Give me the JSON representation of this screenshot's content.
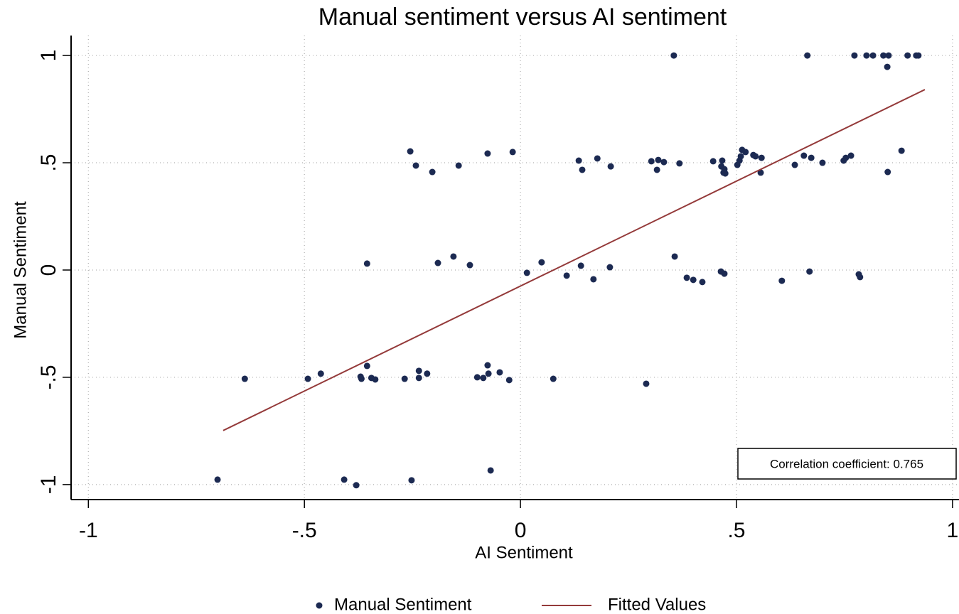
{
  "chart_data": {
    "type": "scatter",
    "title": "Manual sentiment versus AI sentiment",
    "x_label": "AI Sentiment",
    "y_label": "Manual Sentiment",
    "annotation": "Correlation coefficient: 0.765",
    "xlim": [
      -1.04,
      1.015
    ],
    "ylim": [
      -1.07,
      1.093
    ],
    "xticks": [
      -1,
      {
        "value": -0.5,
        "label": "-.5"
      },
      0,
      {
        "value": 0.5,
        "label": ".5"
      },
      1
    ],
    "yticks": [
      -1,
      {
        "value": -0.5,
        "label": "-.5"
      },
      0,
      {
        "value": 0.5,
        "label": ".5"
      },
      1
    ],
    "grid": true,
    "legend": "bottom",
    "series": [
      {
        "name": "Manual Sentiment",
        "type": "scatter",
        "color": "#1c2a52",
        "x": [
          0.355,
          0.664,
          0.773,
          0.801,
          0.816,
          0.84,
          0.852,
          0.896,
          0.916,
          0.921,
          0.849,
          -0.255,
          -0.242,
          -0.204,
          -0.143,
          -0.076,
          -0.018,
          0.135,
          0.143,
          0.178,
          0.209,
          0.303,
          0.316,
          0.319,
          0.332,
          0.368,
          0.446,
          0.465,
          0.467,
          0.47,
          0.472,
          0.474,
          0.502,
          0.507,
          0.51,
          0.513,
          0.521,
          0.539,
          0.544,
          0.558,
          0.556,
          0.635,
          0.656,
          0.673,
          0.699,
          0.748,
          0.753,
          0.765,
          0.882,
          0.85,
          -0.355,
          -0.191,
          -0.155,
          -0.117,
          0.015,
          0.049,
          0.14,
          0.107,
          0.169,
          0.207,
          0.357,
          0.385,
          0.4,
          0.421,
          0.464,
          0.472,
          0.605,
          0.669,
          0.783,
          0.786,
          -0.638,
          -0.492,
          -0.462,
          -0.37,
          -0.368,
          -0.355,
          -0.345,
          -0.336,
          -0.268,
          -0.235,
          -0.235,
          -0.216,
          -0.1,
          -0.086,
          -0.076,
          -0.074,
          -0.048,
          -0.026,
          0.076,
          0.291,
          -0.701,
          -0.408,
          -0.38,
          -0.252,
          -0.069
        ],
        "values": [
          1,
          1,
          1,
          1,
          1,
          1,
          1,
          1,
          1,
          1,
          0.947,
          0.553,
          0.487,
          0.457,
          0.487,
          0.543,
          0.55,
          0.51,
          0.467,
          0.52,
          0.483,
          0.507,
          0.467,
          0.513,
          0.503,
          0.497,
          0.507,
          0.483,
          0.51,
          0.454,
          0.47,
          0.45,
          0.49,
          0.51,
          0.53,
          0.56,
          0.55,
          0.536,
          0.53,
          0.523,
          0.454,
          0.49,
          0.533,
          0.523,
          0.5,
          0.51,
          0.523,
          0.533,
          0.556,
          0.457,
          0.03,
          0.033,
          0.063,
          0.023,
          -0.013,
          0.036,
          0.02,
          -0.026,
          -0.043,
          0.013,
          0.063,
          -0.036,
          -0.046,
          -0.056,
          -0.007,
          -0.017,
          -0.05,
          -0.007,
          -0.02,
          -0.033,
          -0.507,
          -0.507,
          -0.483,
          -0.497,
          -0.507,
          -0.447,
          -0.503,
          -0.51,
          -0.507,
          -0.47,
          -0.503,
          -0.483,
          -0.5,
          -0.503,
          -0.444,
          -0.483,
          -0.477,
          -0.513,
          -0.507,
          -0.53,
          -0.977,
          -0.977,
          -1.003,
          -0.98,
          -0.934
        ]
      },
      {
        "name": "Fitted Values",
        "type": "line",
        "color": "#943a3a",
        "x": [
          -0.688,
          0.936
        ],
        "values": [
          -0.748,
          0.841
        ]
      }
    ]
  }
}
